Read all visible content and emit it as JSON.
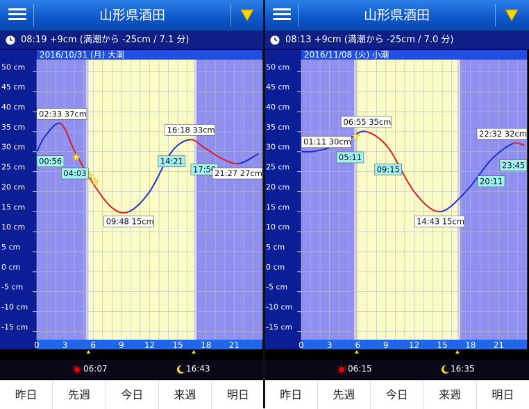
{
  "panels": [
    {
      "id": "left",
      "title": "山形県酒田",
      "current": "08:19 +9cm (満潮から -25cm / 7.1 分)",
      "date_label": "2016/10/31 (月) 大潮",
      "y_ticks": [
        "50 cm",
        "45 cm",
        "40 cm",
        "35 cm",
        "30 cm",
        "25 cm",
        "20 cm",
        "15 cm",
        "10 cm",
        "5 cm",
        "0 cm",
        "-5 cm",
        "-10 cm",
        "-15 cm"
      ],
      "x_ticks": [
        "0",
        "3",
        "6",
        "9",
        "12",
        "15",
        "18",
        "21"
      ],
      "sunrise": "06:07",
      "moonrise": "16:43",
      "daylight": [
        5.5,
        16.7
      ],
      "tide_points": [
        [
          0,
          30
        ],
        [
          0.93,
          34
        ],
        [
          2.55,
          37
        ],
        [
          4.05,
          30
        ],
        [
          6.0,
          22
        ],
        [
          8.0,
          16
        ],
        [
          9.8,
          15
        ],
        [
          12.0,
          20
        ],
        [
          14.35,
          30
        ],
        [
          16.3,
          33
        ],
        [
          17.83,
          31
        ],
        [
          19.5,
          28.5
        ],
        [
          21.45,
          27
        ],
        [
          23.6,
          29.5
        ]
      ],
      "labels": [
        {
          "text": "02:33 37cm",
          "style": "white",
          "t": 2.55,
          "v": 37
        },
        {
          "text": "00:56",
          "style": "cyan",
          "t": 0.93,
          "v": 30
        },
        {
          "text": "04:03",
          "style": "cyan",
          "t": 4.05,
          "v": 27
        },
        {
          "text": "09:48 15cm",
          "style": "white",
          "t": 9.8,
          "v": 15
        },
        {
          "text": "14:21",
          "style": "cyan",
          "t": 14.35,
          "v": 30
        },
        {
          "text": "16:18 33cm",
          "style": "white",
          "t": 16.3,
          "v": 33
        },
        {
          "text": "17:50",
          "style": "cyan",
          "t": 17.83,
          "v": 28
        },
        {
          "text": "21:27 27cm",
          "style": "white",
          "t": 21.45,
          "v": 27
        }
      ],
      "stars": [
        [
          4.2,
          28.6
        ],
        [
          5.6,
          24.0
        ],
        [
          6.2,
          22.5
        ]
      ]
    },
    {
      "id": "right",
      "title": "山形県酒田",
      "current": "08:13 +9cm (満潮から -25cm / 7.0 分)",
      "date_label": "2016/11/08 (火) 小潮",
      "y_ticks": [
        "50 cm",
        "45 cm",
        "40 cm",
        "35 cm",
        "30 cm",
        "25 cm",
        "20 cm",
        "15 cm",
        "10 cm",
        "5 cm",
        "0 cm",
        "-5 cm",
        "-10 cm",
        "-15 cm"
      ],
      "x_ticks": [
        "0",
        "3",
        "6",
        "9",
        "12",
        "15",
        "18",
        "21"
      ],
      "sunrise": "06:15",
      "moonrise": "16:35",
      "daylight": [
        5.9,
        16.6
      ],
      "tide_points": [
        [
          0,
          30
        ],
        [
          1.2,
          30
        ],
        [
          3.0,
          31
        ],
        [
          5.2,
          33.5
        ],
        [
          6.9,
          35
        ],
        [
          9.25,
          31
        ],
        [
          12.0,
          20
        ],
        [
          14.7,
          15
        ],
        [
          17.5,
          20
        ],
        [
          20.2,
          28
        ],
        [
          22.5,
          32
        ],
        [
          23.75,
          31.5
        ]
      ],
      "labels": [
        {
          "text": "01:11 30cm",
          "style": "white",
          "t": 1.2,
          "v": 30
        },
        {
          "text": "06:55 35cm",
          "style": "white",
          "t": 6.9,
          "v": 35
        },
        {
          "text": "05:11",
          "style": "cyan",
          "t": 5.2,
          "v": 31
        },
        {
          "text": "09:15",
          "style": "cyan",
          "t": 9.25,
          "v": 28
        },
        {
          "text": "14:43 15cm",
          "style": "white",
          "t": 14.7,
          "v": 15
        },
        {
          "text": "20:11",
          "style": "cyan",
          "t": 20.2,
          "v": 25
        },
        {
          "text": "22:32 32cm",
          "style": "white",
          "t": 22.5,
          "v": 32
        },
        {
          "text": "23:45",
          "style": "cyan",
          "t": 23.75,
          "v": 29
        }
      ],
      "stars": [
        [
          5.8,
          33.8
        ]
      ]
    }
  ],
  "nav": [
    "昨日",
    "先週",
    "今日",
    "来週",
    "明日"
  ],
  "colors": {
    "header": "#1565d8",
    "night": "#8f8ff0",
    "day": "#fbfbc6",
    "curve_rise": "#d82020",
    "curve_fall": "#1a2fd8",
    "label_cyan": "#9ff3f3"
  }
}
